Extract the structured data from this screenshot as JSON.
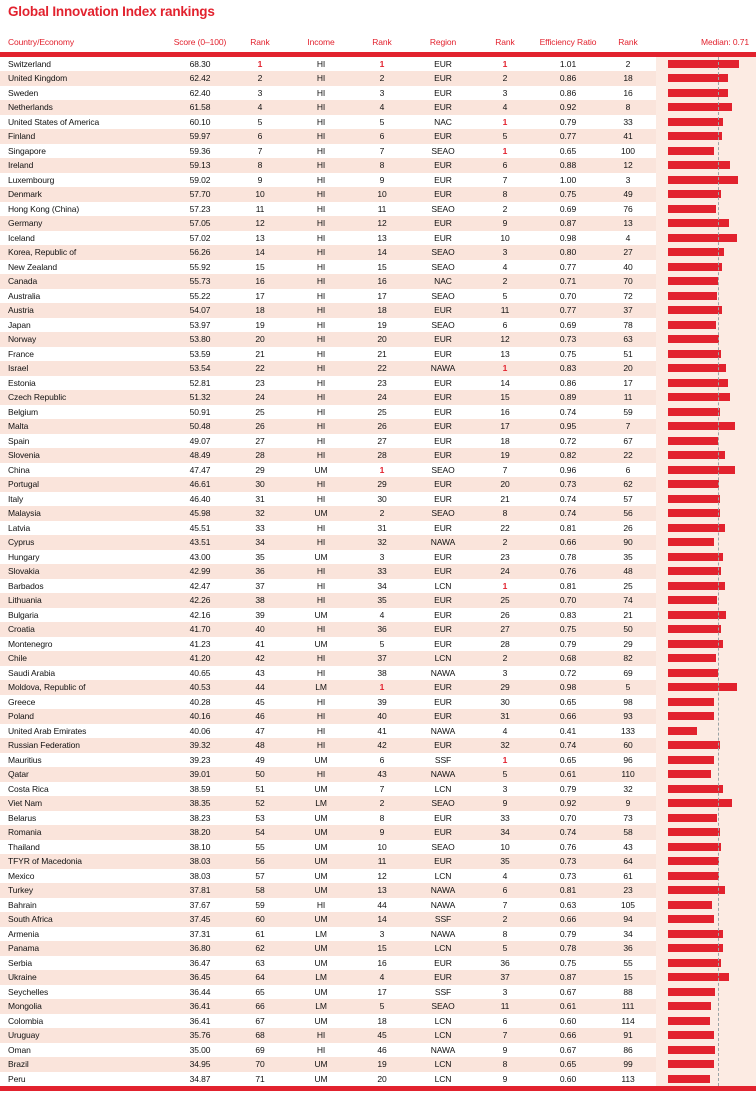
{
  "title": "Global Innovation Index rankings",
  "columns": {
    "country": "Country/Economy",
    "score": "Score (0–100)",
    "rank": "Rank",
    "income": "Income",
    "income_rank": "Rank",
    "region": "Region",
    "region_rank": "Rank",
    "efficiency_ratio": "Efficiency Ratio",
    "efficiency_rank": "Rank",
    "median_label": "Median: 0.71"
  },
  "colors": {
    "accent_red": "#e2222e",
    "stripe_pink": "#fae4db",
    "panel_pink": "#fcebe3",
    "median_line": "#9aa3a6"
  },
  "chart_data": {
    "type": "table",
    "title": "Global Innovation Index rankings",
    "bar_column": "Efficiency Ratio",
    "median_value": 0.71,
    "median_annotation": "Median: 0.71",
    "bar_range": [
      0,
      1.01
    ],
    "row_fields": [
      "country",
      "score",
      "rank",
      "income",
      "income_rank",
      "region",
      "region_rank",
      "efficiency_ratio",
      "efficiency_rank"
    ],
    "rows": [
      [
        "Switzerland",
        "68.30",
        "1",
        "HI",
        "1",
        "EUR",
        "1",
        "1.01",
        "2"
      ],
      [
        "United Kingdom",
        "62.42",
        "2",
        "HI",
        "2",
        "EUR",
        "2",
        "0.86",
        "18"
      ],
      [
        "Sweden",
        "62.40",
        "3",
        "HI",
        "3",
        "EUR",
        "3",
        "0.86",
        "16"
      ],
      [
        "Netherlands",
        "61.58",
        "4",
        "HI",
        "4",
        "EUR",
        "4",
        "0.92",
        "8"
      ],
      [
        "United States of America",
        "60.10",
        "5",
        "HI",
        "5",
        "NAC",
        "1",
        "0.79",
        "33"
      ],
      [
        "Finland",
        "59.97",
        "6",
        "HI",
        "6",
        "EUR",
        "5",
        "0.77",
        "41"
      ],
      [
        "Singapore",
        "59.36",
        "7",
        "HI",
        "7",
        "SEAO",
        "1",
        "0.65",
        "100"
      ],
      [
        "Ireland",
        "59.13",
        "8",
        "HI",
        "8",
        "EUR",
        "6",
        "0.88",
        "12"
      ],
      [
        "Luxembourg",
        "59.02",
        "9",
        "HI",
        "9",
        "EUR",
        "7",
        "1.00",
        "3"
      ],
      [
        "Denmark",
        "57.70",
        "10",
        "HI",
        "10",
        "EUR",
        "8",
        "0.75",
        "49"
      ],
      [
        "Hong Kong (China)",
        "57.23",
        "11",
        "HI",
        "11",
        "SEAO",
        "2",
        "0.69",
        "76"
      ],
      [
        "Germany",
        "57.05",
        "12",
        "HI",
        "12",
        "EUR",
        "9",
        "0.87",
        "13"
      ],
      [
        "Iceland",
        "57.02",
        "13",
        "HI",
        "13",
        "EUR",
        "10",
        "0.98",
        "4"
      ],
      [
        "Korea, Republic of",
        "56.26",
        "14",
        "HI",
        "14",
        "SEAO",
        "3",
        "0.80",
        "27"
      ],
      [
        "New Zealand",
        "55.92",
        "15",
        "HI",
        "15",
        "SEAO",
        "4",
        "0.77",
        "40"
      ],
      [
        "Canada",
        "55.73",
        "16",
        "HI",
        "16",
        "NAC",
        "2",
        "0.71",
        "70"
      ],
      [
        "Australia",
        "55.22",
        "17",
        "HI",
        "17",
        "SEAO",
        "5",
        "0.70",
        "72"
      ],
      [
        "Austria",
        "54.07",
        "18",
        "HI",
        "18",
        "EUR",
        "11",
        "0.77",
        "37"
      ],
      [
        "Japan",
        "53.97",
        "19",
        "HI",
        "19",
        "SEAO",
        "6",
        "0.69",
        "78"
      ],
      [
        "Norway",
        "53.80",
        "20",
        "HI",
        "20",
        "EUR",
        "12",
        "0.73",
        "63"
      ],
      [
        "France",
        "53.59",
        "21",
        "HI",
        "21",
        "EUR",
        "13",
        "0.75",
        "51"
      ],
      [
        "Israel",
        "53.54",
        "22",
        "HI",
        "22",
        "NAWA",
        "1",
        "0.83",
        "20"
      ],
      [
        "Estonia",
        "52.81",
        "23",
        "HI",
        "23",
        "EUR",
        "14",
        "0.86",
        "17"
      ],
      [
        "Czech Republic",
        "51.32",
        "24",
        "HI",
        "24",
        "EUR",
        "15",
        "0.89",
        "11"
      ],
      [
        "Belgium",
        "50.91",
        "25",
        "HI",
        "25",
        "EUR",
        "16",
        "0.74",
        "59"
      ],
      [
        "Malta",
        "50.48",
        "26",
        "HI",
        "26",
        "EUR",
        "17",
        "0.95",
        "7"
      ],
      [
        "Spain",
        "49.07",
        "27",
        "HI",
        "27",
        "EUR",
        "18",
        "0.72",
        "67"
      ],
      [
        "Slovenia",
        "48.49",
        "28",
        "HI",
        "28",
        "EUR",
        "19",
        "0.82",
        "22"
      ],
      [
        "China",
        "47.47",
        "29",
        "UM",
        "1",
        "SEAO",
        "7",
        "0.96",
        "6"
      ],
      [
        "Portugal",
        "46.61",
        "30",
        "HI",
        "29",
        "EUR",
        "20",
        "0.73",
        "62"
      ],
      [
        "Italy",
        "46.40",
        "31",
        "HI",
        "30",
        "EUR",
        "21",
        "0.74",
        "57"
      ],
      [
        "Malaysia",
        "45.98",
        "32",
        "UM",
        "2",
        "SEAO",
        "8",
        "0.74",
        "56"
      ],
      [
        "Latvia",
        "45.51",
        "33",
        "HI",
        "31",
        "EUR",
        "22",
        "0.81",
        "26"
      ],
      [
        "Cyprus",
        "43.51",
        "34",
        "HI",
        "32",
        "NAWA",
        "2",
        "0.66",
        "90"
      ],
      [
        "Hungary",
        "43.00",
        "35",
        "UM",
        "3",
        "EUR",
        "23",
        "0.78",
        "35"
      ],
      [
        "Slovakia",
        "42.99",
        "36",
        "HI",
        "33",
        "EUR",
        "24",
        "0.76",
        "48"
      ],
      [
        "Barbados",
        "42.47",
        "37",
        "HI",
        "34",
        "LCN",
        "1",
        "0.81",
        "25"
      ],
      [
        "Lithuania",
        "42.26",
        "38",
        "HI",
        "35",
        "EUR",
        "25",
        "0.70",
        "74"
      ],
      [
        "Bulgaria",
        "42.16",
        "39",
        "UM",
        "4",
        "EUR",
        "26",
        "0.83",
        "21"
      ],
      [
        "Croatia",
        "41.70",
        "40",
        "HI",
        "36",
        "EUR",
        "27",
        "0.75",
        "50"
      ],
      [
        "Montenegro",
        "41.23",
        "41",
        "UM",
        "5",
        "EUR",
        "28",
        "0.79",
        "29"
      ],
      [
        "Chile",
        "41.20",
        "42",
        "HI",
        "37",
        "LCN",
        "2",
        "0.68",
        "82"
      ],
      [
        "Saudi Arabia",
        "40.65",
        "43",
        "HI",
        "38",
        "NAWA",
        "3",
        "0.72",
        "69"
      ],
      [
        "Moldova, Republic of",
        "40.53",
        "44",
        "LM",
        "1",
        "EUR",
        "29",
        "0.98",
        "5"
      ],
      [
        "Greece",
        "40.28",
        "45",
        "HI",
        "39",
        "EUR",
        "30",
        "0.65",
        "98"
      ],
      [
        "Poland",
        "40.16",
        "46",
        "HI",
        "40",
        "EUR",
        "31",
        "0.66",
        "93"
      ],
      [
        "United Arab Emirates",
        "40.06",
        "47",
        "HI",
        "41",
        "NAWA",
        "4",
        "0.41",
        "133"
      ],
      [
        "Russian Federation",
        "39.32",
        "48",
        "HI",
        "42",
        "EUR",
        "32",
        "0.74",
        "60"
      ],
      [
        "Mauritius",
        "39.23",
        "49",
        "UM",
        "6",
        "SSF",
        "1",
        "0.65",
        "96"
      ],
      [
        "Qatar",
        "39.01",
        "50",
        "HI",
        "43",
        "NAWA",
        "5",
        "0.61",
        "110"
      ],
      [
        "Costa Rica",
        "38.59",
        "51",
        "UM",
        "7",
        "LCN",
        "3",
        "0.79",
        "32"
      ],
      [
        "Viet Nam",
        "38.35",
        "52",
        "LM",
        "2",
        "SEAO",
        "9",
        "0.92",
        "9"
      ],
      [
        "Belarus",
        "38.23",
        "53",
        "UM",
        "8",
        "EUR",
        "33",
        "0.70",
        "73"
      ],
      [
        "Romania",
        "38.20",
        "54",
        "UM",
        "9",
        "EUR",
        "34",
        "0.74",
        "58"
      ],
      [
        "Thailand",
        "38.10",
        "55",
        "UM",
        "10",
        "SEAO",
        "10",
        "0.76",
        "43"
      ],
      [
        "TFYR of Macedonia",
        "38.03",
        "56",
        "UM",
        "11",
        "EUR",
        "35",
        "0.73",
        "64"
      ],
      [
        "Mexico",
        "38.03",
        "57",
        "UM",
        "12",
        "LCN",
        "4",
        "0.73",
        "61"
      ],
      [
        "Turkey",
        "37.81",
        "58",
        "UM",
        "13",
        "NAWA",
        "6",
        "0.81",
        "23"
      ],
      [
        "Bahrain",
        "37.67",
        "59",
        "HI",
        "44",
        "NAWA",
        "7",
        "0.63",
        "105"
      ],
      [
        "South Africa",
        "37.45",
        "60",
        "UM",
        "14",
        "SSF",
        "2",
        "0.66",
        "94"
      ],
      [
        "Armenia",
        "37.31",
        "61",
        "LM",
        "3",
        "NAWA",
        "8",
        "0.79",
        "34"
      ],
      [
        "Panama",
        "36.80",
        "62",
        "UM",
        "15",
        "LCN",
        "5",
        "0.78",
        "36"
      ],
      [
        "Serbia",
        "36.47",
        "63",
        "UM",
        "16",
        "EUR",
        "36",
        "0.75",
        "55"
      ],
      [
        "Ukraine",
        "36.45",
        "64",
        "LM",
        "4",
        "EUR",
        "37",
        "0.87",
        "15"
      ],
      [
        "Seychelles",
        "36.44",
        "65",
        "UM",
        "17",
        "SSF",
        "3",
        "0.67",
        "88"
      ],
      [
        "Mongolia",
        "36.41",
        "66",
        "LM",
        "5",
        "SEAO",
        "11",
        "0.61",
        "111"
      ],
      [
        "Colombia",
        "36.41",
        "67",
        "UM",
        "18",
        "LCN",
        "6",
        "0.60",
        "114"
      ],
      [
        "Uruguay",
        "35.76",
        "68",
        "HI",
        "45",
        "LCN",
        "7",
        "0.66",
        "91"
      ],
      [
        "Oman",
        "35.00",
        "69",
        "HI",
        "46",
        "NAWA",
        "9",
        "0.67",
        "86"
      ],
      [
        "Brazil",
        "34.95",
        "70",
        "UM",
        "19",
        "LCN",
        "8",
        "0.65",
        "99"
      ],
      [
        "Peru",
        "34.87",
        "71",
        "UM",
        "20",
        "LCN",
        "9",
        "0.60",
        "113"
      ]
    ]
  }
}
